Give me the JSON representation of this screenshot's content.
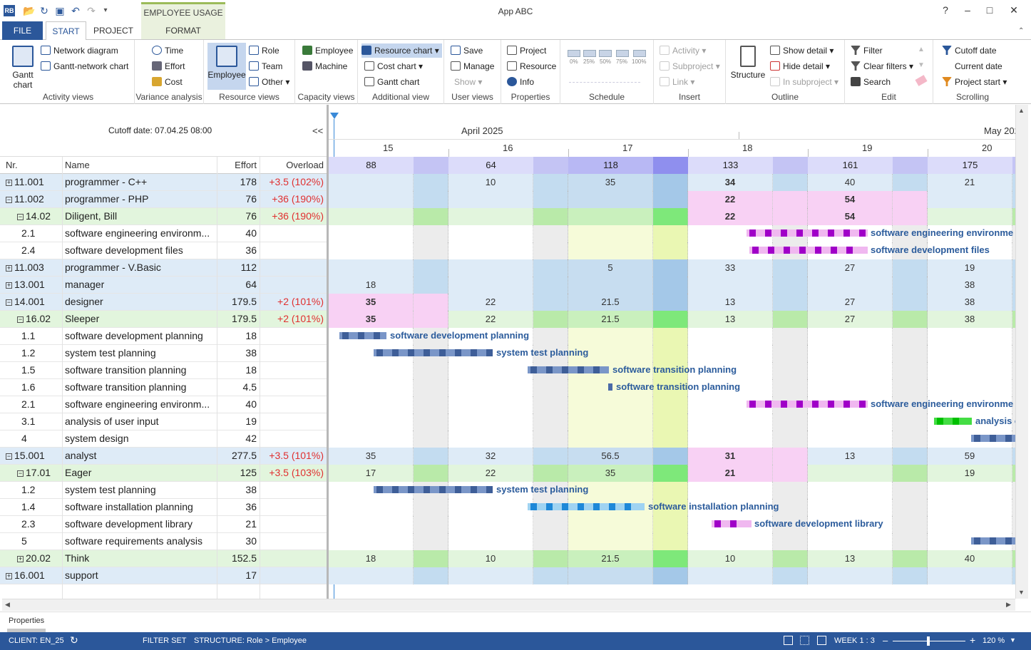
{
  "app_title": "App ABC",
  "context_tab": "EMPLOYEE USAGE",
  "tabs": [
    "FILE",
    "START",
    "PROJECT",
    "FORMAT"
  ],
  "ribbon": {
    "activity_views": {
      "label": "Activity views",
      "gantt": "Gantt chart",
      "network": "Network diagram",
      "gantt_network": "Gantt-network chart"
    },
    "variance": {
      "label": "Variance analysis",
      "time": "Time",
      "effort": "Effort",
      "cost": "Cost"
    },
    "resource_views": {
      "label": "Resource views",
      "employee": "Employee",
      "role": "Role",
      "team": "Team",
      "other": "Other"
    },
    "capacity_views": {
      "label": "Capacity views",
      "employee": "Employee",
      "machine": "Machine"
    },
    "additional_view": {
      "label": "Additional view",
      "resource_chart": "Resource chart",
      "cost_chart": "Cost chart",
      "gantt_chart": "Gantt chart"
    },
    "user_views": {
      "label": "User views",
      "save": "Save",
      "manage": "Manage",
      "show": "Show"
    },
    "properties": {
      "label": "Properties",
      "project": "Project",
      "resource": "Resource",
      "info": "Info"
    },
    "schedule": {
      "label": "Schedule",
      "pcts": [
        "0%",
        "25%",
        "50%",
        "75%",
        "100%"
      ]
    },
    "insert": {
      "label": "Insert",
      "activity": "Activity",
      "subproject": "Subproject",
      "link": "Link"
    },
    "outline": {
      "label": "Outline",
      "structure": "Structure",
      "show_detail": "Show detail",
      "hide_detail": "Hide detail",
      "in_subproject": "In subproject"
    },
    "edit": {
      "label": "Edit",
      "filter": "Filter",
      "clear_filters": "Clear filters",
      "search": "Search"
    },
    "scrolling": {
      "label": "Scrolling",
      "cutoff_date": "Cutoff date",
      "current_date": "Current date",
      "project_start": "Project start"
    }
  },
  "cutoff": "Cutoff date: 07.04.25 08:00",
  "collapse": "<<",
  "columns": {
    "nr": "Nr.",
    "name": "Name",
    "effort": "Effort",
    "overload": "Overload"
  },
  "rows": [
    {
      "nr": "11.001",
      "name": "programmer - C++",
      "effort": "178",
      "overload": "+3.5 (102%)",
      "type": "res",
      "sign": "+"
    },
    {
      "nr": "11.002",
      "name": "programmer - PHP",
      "effort": "76",
      "overload": "+36 (190%)",
      "type": "res",
      "sign": "−"
    },
    {
      "nr": "14.02",
      "name": "Diligent, Bill",
      "effort": "76",
      "overload": "+36 (190%)",
      "type": "emp",
      "sign": "−"
    },
    {
      "nr": "2.1",
      "name": "software engineering environm...",
      "effort": "40",
      "overload": "",
      "type": "act"
    },
    {
      "nr": "2.4",
      "name": "software development files",
      "effort": "36",
      "overload": "",
      "type": "act"
    },
    {
      "nr": "11.003",
      "name": "programmer - V.Basic",
      "effort": "112",
      "overload": "",
      "type": "res",
      "sign": "+"
    },
    {
      "nr": "13.001",
      "name": "manager",
      "effort": "64",
      "overload": "",
      "type": "res",
      "sign": "+"
    },
    {
      "nr": "14.001",
      "name": "designer",
      "effort": "179.5",
      "overload": "+2 (101%)",
      "type": "res",
      "sign": "−"
    },
    {
      "nr": "16.02",
      "name": "Sleeper",
      "effort": "179.5",
      "overload": "+2 (101%)",
      "type": "emp",
      "sign": "−"
    },
    {
      "nr": "1.1",
      "name": "software development planning",
      "effort": "18",
      "overload": "",
      "type": "act"
    },
    {
      "nr": "1.2",
      "name": "system test planning",
      "effort": "38",
      "overload": "",
      "type": "act"
    },
    {
      "nr": "1.5",
      "name": "software transition planning",
      "effort": "18",
      "overload": "",
      "type": "act"
    },
    {
      "nr": "1.6",
      "name": "software transition planning",
      "effort": "4.5",
      "overload": "",
      "type": "act"
    },
    {
      "nr": "2.1",
      "name": "software engineering environm...",
      "effort": "40",
      "overload": "",
      "type": "act"
    },
    {
      "nr": "3.1",
      "name": "analysis of user input",
      "effort": "19",
      "overload": "",
      "type": "act"
    },
    {
      "nr": "4",
      "name": "system design",
      "effort": "42",
      "overload": "",
      "type": "act"
    },
    {
      "nr": "15.001",
      "name": "analyst",
      "effort": "277.5",
      "overload": "+3.5 (101%)",
      "type": "res",
      "sign": "−"
    },
    {
      "nr": "17.01",
      "name": "Eager",
      "effort": "125",
      "overload": "+3.5 (103%)",
      "type": "emp",
      "sign": "−"
    },
    {
      "nr": "1.2",
      "name": "system test planning",
      "effort": "38",
      "overload": "",
      "type": "act"
    },
    {
      "nr": "1.4",
      "name": "software installation planning",
      "effort": "36",
      "overload": "",
      "type": "act"
    },
    {
      "nr": "2.3",
      "name": "software development library",
      "effort": "21",
      "overload": "",
      "type": "act"
    },
    {
      "nr": "5",
      "name": "software requirements analysis",
      "effort": "30",
      "overload": "",
      "type": "act"
    },
    {
      "nr": "20.02",
      "name": "Think",
      "effort": "152.5",
      "overload": "",
      "type": "emp",
      "sign": "+"
    },
    {
      "nr": "16.001",
      "name": "support",
      "effort": "17",
      "overload": "",
      "type": "res",
      "sign": "+"
    }
  ],
  "timeline": {
    "month1": "April 2025",
    "month2": "May 202",
    "days": [
      "15",
      "16",
      "17",
      "18",
      "19",
      "20"
    ],
    "totals": [
      "88",
      "64",
      "118",
      "133",
      "161",
      "175"
    ]
  },
  "chart_cells": {
    "0": [
      "",
      "10",
      "35",
      "34",
      "40",
      "21"
    ],
    "1": [
      "",
      "",
      "",
      "22",
      "54",
      ""
    ],
    "2": [
      "",
      "",
      "",
      "22",
      "54",
      ""
    ],
    "5": [
      "",
      "",
      "5",
      "33",
      "27",
      "19"
    ],
    "6": [
      "18",
      "",
      "",
      "",
      "",
      "38"
    ],
    "7": [
      "35",
      "22",
      "21.5",
      "13",
      "27",
      "38"
    ],
    "8": [
      "35",
      "22",
      "21.5",
      "13",
      "27",
      "38"
    ],
    "16": [
      "35",
      "32",
      "56.5",
      "31",
      "13",
      "59"
    ],
    "17": [
      "17",
      "22",
      "35",
      "21",
      "",
      "19"
    ],
    "22": [
      "18",
      "10",
      "21.5",
      "10",
      "13",
      "40"
    ]
  },
  "bar_labels": {
    "3": "software engineering environme",
    "4": "software development files",
    "9": "software development planning",
    "10": "system test planning",
    "11": "software transition planning",
    "12": "software transition planning",
    "13": "software engineering environme",
    "14": "analysis o",
    "18": "system test planning",
    "19": "software installation planning",
    "20": "software development library"
  },
  "properties_label": "Properties",
  "status": {
    "client": "CLIENT: EN_25",
    "filter": "FILTER SET",
    "structure": "STRUCTURE: Role > Employee",
    "week": "WEEK 1 : 3",
    "zoom": "120 %"
  },
  "colors": {
    "accent": "#2b579a",
    "overload": "#e03030",
    "bar_label": "#2c5c9c"
  }
}
